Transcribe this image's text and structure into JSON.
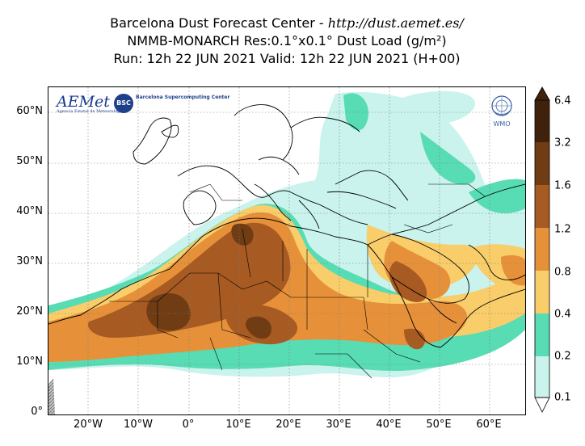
{
  "title": {
    "line1_prefix": "Barcelona Dust Forecast Center - ",
    "line1_url": "http://dust.aemet.es/",
    "line2": "NMMB-MONARCH   Res:0.1°x0.1°   Dust Load (g/m²)",
    "line3": "Run: 12h 22 JUN 2021   Valid: 12h 22 JUN 2021 (H+00)"
  },
  "logos": {
    "aemet": "AEMet",
    "aemet_sub": "Agencia Estatal de Meteorología",
    "bsc": "BSC",
    "bsc_text": "Barcelona Supercomputing Center",
    "wmo": "WMO"
  },
  "map": {
    "lon_range": [
      -28,
      67
    ],
    "lat_range": [
      0,
      65
    ],
    "lat_ticks": [
      "0°",
      "10°N",
      "20°N",
      "30°N",
      "40°N",
      "50°N",
      "60°N"
    ],
    "lon_ticks": [
      "20°W",
      "10°W",
      "0°",
      "10°E",
      "20°E",
      "30°E",
      "40°E",
      "50°E",
      "60°E"
    ],
    "grid": true
  },
  "colorbar": {
    "levels": [
      "0.1",
      "0.2",
      "0.4",
      "0.8",
      "1.2",
      "1.6",
      "3.2",
      "6.4"
    ],
    "colors": [
      "#ffffff",
      "#c9f3ec",
      "#57dcb4",
      "#f8cd6a",
      "#e6913a",
      "#a75a22",
      "#6f3c14",
      "#3f210c"
    ]
  },
  "colors": {
    "very_light": "#c9f3ec",
    "teal": "#57dcb4",
    "yellow": "#f8cd6a",
    "orange": "#e6913a",
    "brown": "#a75a22",
    "dark_brown": "#6f3c14",
    "darkest": "#3f210c",
    "coastline": "#000000",
    "missing": "#8a8a8a"
  }
}
